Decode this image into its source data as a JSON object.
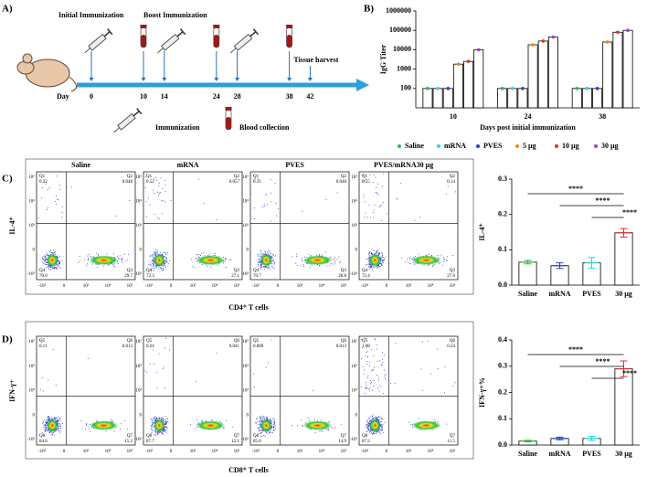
{
  "panel_labels": [
    "A)",
    "B)",
    "C)",
    "D)"
  ],
  "timeline": {
    "initial_label": "Initial Immunization",
    "boost_label": "Boost Immunization",
    "harvest_label": "Tissue harvest",
    "day_label": "Day",
    "days": [
      0,
      10,
      14,
      24,
      28,
      38,
      42
    ],
    "immunization_days": [
      0,
      14,
      28
    ],
    "blood_days": [
      10,
      24,
      38
    ],
    "harvest_day": 42,
    "legend": [
      "Immunization",
      "Blood collection"
    ]
  },
  "flow": [
    {
      "ylabel": "IL-4⁺",
      "xlabel": "CD4⁺ T cells",
      "quadrant_names": [
        "Q1",
        "Q2",
        "Q3",
        "Q4"
      ],
      "axis_tick_labels": [
        "-10³",
        "0",
        "10³",
        "10⁴",
        "10⁵"
      ],
      "plots": [
        {
          "title": "Saline",
          "values": [
            0.32,
            0.048,
            29.7,
            70.0
          ],
          "value_labels": [
            "0.32",
            "0.048",
            "29.7",
            "70.0"
          ]
        },
        {
          "title": "mRNA",
          "values": [
            0.52,
            0.057,
            27.1,
            72.3
          ],
          "value_labels": [
            "0.52",
            "0.057",
            "27.1",
            "72.3"
          ]
        },
        {
          "title": "PVES",
          "values": [
            0.31,
            0.048,
            28.8,
            70.7
          ],
          "value_labels": [
            "0.31",
            "0.048",
            "28.8",
            "70.7"
          ]
        },
        {
          "title": "PVES/mRNA30 µg",
          "values": [
            0.55,
            0.14,
            27.0,
            72.4
          ],
          "value_labels": [
            "0.55",
            "0.14",
            "27.0",
            "72.4"
          ]
        }
      ]
    },
    {
      "ylabel": "IFN-γ+",
      "xlabel": "CD8⁺ T cells",
      "quadrant_names": [
        "Q5",
        "Q6",
        "Q7",
        "Q8"
      ],
      "axis_tick_labels": [
        "-10³",
        "0",
        "10³",
        "10⁴",
        "10⁵"
      ],
      "plots": [
        {
          "values": [
            0.11,
            0.013,
            15.2,
            84.6
          ],
          "value_labels": [
            "0.11",
            "0.013",
            "15.2",
            "84.6"
          ]
        },
        {
          "values": [
            0.24,
            0.041,
            12.1,
            87.7
          ],
          "value_labels": [
            "0.24",
            "0.041",
            "12.1",
            "87.7"
          ]
        },
        {
          "values": [
            0.089,
            0.013,
            14.9,
            85.0
          ],
          "value_labels": [
            "0.089",
            "0.013",
            "14.9",
            "85.0"
          ]
        },
        {
          "values": [
            1.08,
            0.24,
            11.5,
            87.2
          ],
          "value_labels": [
            "1.08",
            "0.24",
            "11.5",
            "87.2"
          ]
        }
      ]
    }
  ],
  "chart_data": [
    {
      "type": "bar",
      "log_y": true,
      "ylabel": "IgG Titer",
      "xlabel": "Days post initial immunization",
      "categories": [
        "10",
        "24",
        "38"
      ],
      "ylim": [
        10,
        1000000
      ],
      "yticks": [
        100,
        1000,
        10000,
        100000,
        1000000
      ],
      "series": [
        {
          "name": "Saline",
          "color": "#2db84a",
          "values": [
            100,
            100,
            100
          ]
        },
        {
          "name": "mRNA",
          "color": "#29d3e0",
          "values": [
            100,
            100,
            100
          ]
        },
        {
          "name": "PVES",
          "color": "#2b3fc9",
          "values": [
            100,
            100,
            100
          ]
        },
        {
          "name": "5 µg",
          "color": "#f08a1c",
          "values": [
            1800,
            18000,
            25000
          ]
        },
        {
          "name": "10 µg",
          "color": "#e52a2a",
          "values": [
            2500,
            28000,
            80000
          ]
        },
        {
          "name": "30 µg",
          "color": "#a040c8",
          "values": [
            10000,
            45000,
            100000
          ]
        }
      ]
    },
    {
      "type": "bar",
      "ylabel": "IL-4⁺",
      "categories": [
        "Saline",
        "mRNA",
        "PVES",
        "30 µg"
      ],
      "colors": [
        "#2db84a",
        "#2b3fc9",
        "#29d3e0",
        "#e52a2a"
      ],
      "values": [
        0.065,
        0.055,
        0.063,
        0.148
      ],
      "errors": [
        0.005,
        0.008,
        0.015,
        0.012
      ],
      "ylim": [
        0,
        0.3
      ],
      "yticks": [
        {
          "value": 0,
          "label": "0.0"
        },
        0.1,
        0.2,
        0.3
      ],
      "significance": [
        {
          "label": "****",
          "pair": [
            "Saline",
            "30 µg"
          ]
        },
        {
          "label": "****",
          "pair": [
            "mRNA",
            "30 µg"
          ]
        },
        {
          "label": "****",
          "pair": [
            "PVES",
            "30 µg"
          ]
        }
      ]
    },
    {
      "type": "bar",
      "ylabel": "IFN-γ+%",
      "categories": [
        "Saline",
        "mRNA",
        "PVES",
        "30 µg"
      ],
      "colors": [
        "#2db84a",
        "#2b3fc9",
        "#29d3e0",
        "#e52a2a"
      ],
      "values": [
        0.015,
        0.025,
        0.025,
        0.29
      ],
      "errors": [
        0.003,
        0.005,
        0.008,
        0.03
      ],
      "ylim": [
        0,
        0.4
      ],
      "yticks": [
        {
          "value": 0,
          "label": "0.0"
        },
        0.1,
        0.2,
        0.3,
        0.4
      ],
      "significance": [
        {
          "label": "****",
          "pair": [
            "Saline",
            "30 µg"
          ]
        },
        {
          "label": "****",
          "pair": [
            "mRNA",
            "30 µg"
          ]
        },
        {
          "label": "****",
          "pair": [
            "PVES",
            "30 µg"
          ]
        }
      ]
    }
  ]
}
